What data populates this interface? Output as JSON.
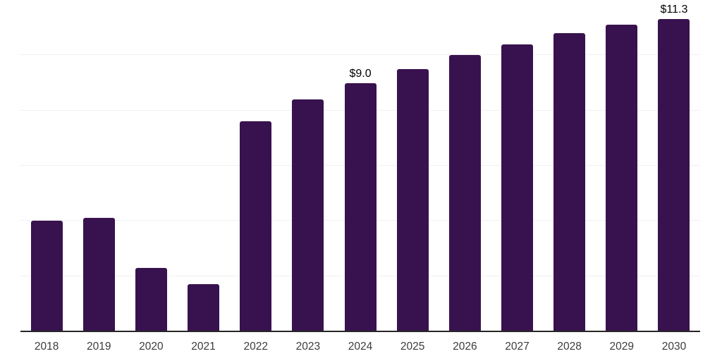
{
  "chart_data": {
    "type": "bar",
    "title": "",
    "xlabel": "",
    "ylabel": "",
    "categories": [
      "2018",
      "2019",
      "2020",
      "2021",
      "2022",
      "2023",
      "2024",
      "2025",
      "2026",
      "2027",
      "2028",
      "2029",
      "2030"
    ],
    "values": [
      4.0,
      4.1,
      2.3,
      1.7,
      7.6,
      8.4,
      9.0,
      9.5,
      10.0,
      10.4,
      10.8,
      11.1,
      11.3
    ],
    "data_labels": {
      "2024": "$9.0",
      "2030": "$11.3"
    },
    "ylim": [
      0,
      12
    ],
    "grid_values": [
      2,
      4,
      6,
      8,
      10,
      12
    ],
    "grid": "horizontal",
    "legend": "none",
    "colors": {
      "bar": "#38124E",
      "gridline": "#F0F0F0",
      "axis_line": "#262626",
      "tick_label": "#3C3C3C",
      "data_label": "#000000",
      "background": "#FFFFFF"
    }
  }
}
